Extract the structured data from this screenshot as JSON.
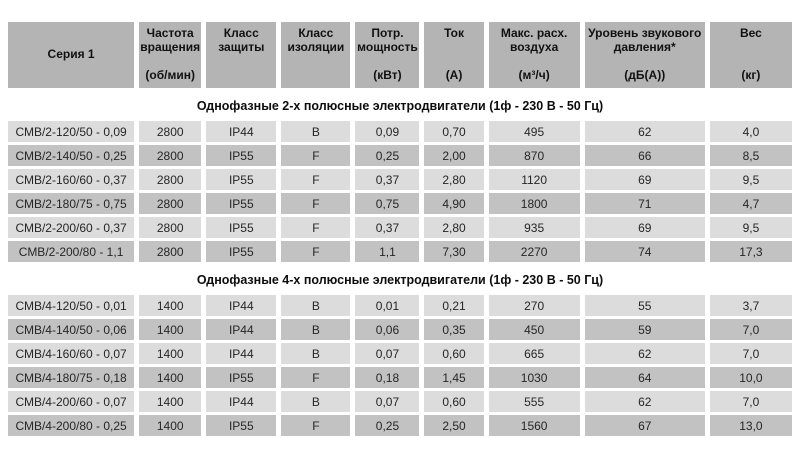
{
  "colors": {
    "header_bg": "#b4b4b4",
    "row_light_bg": "#dcdcdc",
    "row_dark_bg": "#c2c2c2",
    "section_title_bg": "#ffffff",
    "page_bg": "#ffffff",
    "text": "#262626"
  },
  "table": {
    "columns": [
      {
        "label": "Серия 1",
        "unit": ""
      },
      {
        "label": "Частота вращения",
        "unit": "(об/мин)"
      },
      {
        "label": "Класс защиты",
        "unit": ""
      },
      {
        "label": "Класс изоляции",
        "unit": ""
      },
      {
        "label": "Потр. мощность",
        "unit": "(кВт)"
      },
      {
        "label": "Ток",
        "unit": "(А)"
      },
      {
        "label": "Макс. расх. воздуха",
        "unit": "(м³/ч)"
      },
      {
        "label": "Уровень звукового давления*",
        "unit": "(дБ(А))"
      },
      {
        "label": "Вес",
        "unit": "(кг)"
      }
    ],
    "sections": [
      {
        "title": "Однофазные 2-х полюсные электродвигатели (1ф - 230 В - 50 Гц)",
        "rows": [
          [
            "СМВ/2-120/50 - 0,09",
            "2800",
            "IP44",
            "B",
            "0,09",
            "0,70",
            "495",
            "62",
            "4,0"
          ],
          [
            "СМВ/2-140/50 - 0,25",
            "2800",
            "IP55",
            "F",
            "0,25",
            "2,00",
            "870",
            "66",
            "8,5"
          ],
          [
            "СМВ/2-160/60 - 0,37",
            "2800",
            "IP55",
            "F",
            "0,37",
            "2,80",
            "1120",
            "69",
            "9,5"
          ],
          [
            "СМВ/2-180/75 - 0,75",
            "2800",
            "IP55",
            "F",
            "0,75",
            "4,90",
            "1800",
            "71",
            "4,7"
          ],
          [
            "СМВ/2-200/60 - 0,37",
            "2800",
            "IP55",
            "F",
            "0,37",
            "2,80",
            "935",
            "69",
            "9,5"
          ],
          [
            "СМВ/2-200/80 - 1,1",
            "2800",
            "IP55",
            "F",
            "1,1",
            "7,30",
            "2270",
            "74",
            "17,3"
          ]
        ]
      },
      {
        "title": "Однофазные 4-х полюсные электродвигатели (1ф - 230 В - 50 Гц)",
        "rows": [
          [
            "СМВ/4-120/50 - 0,01",
            "1400",
            "IP44",
            "B",
            "0,01",
            "0,21",
            "270",
            "55",
            "3,7"
          ],
          [
            "СМВ/4-140/50 - 0,06",
            "1400",
            "IP44",
            "B",
            "0,06",
            "0,35",
            "450",
            "59",
            "7,0"
          ],
          [
            "СМВ/4-160/60 - 0,07",
            "1400",
            "IP44",
            "B",
            "0,07",
            "0,60",
            "665",
            "62",
            "7,0"
          ],
          [
            "СМВ/4-180/75 - 0,18",
            "1400",
            "IP55",
            "F",
            "0,18",
            "1,45",
            "1030",
            "64",
            "10,0"
          ],
          [
            "СМВ/4-200/60 - 0,07",
            "1400",
            "IP44",
            "B",
            "0,07",
            "0,60",
            "555",
            "62",
            "7,0"
          ],
          [
            "СМВ/4-200/80 - 0,25",
            "1400",
            "IP55",
            "F",
            "0,25",
            "2,50",
            "1560",
            "67",
            "13,0"
          ]
        ]
      }
    ]
  }
}
